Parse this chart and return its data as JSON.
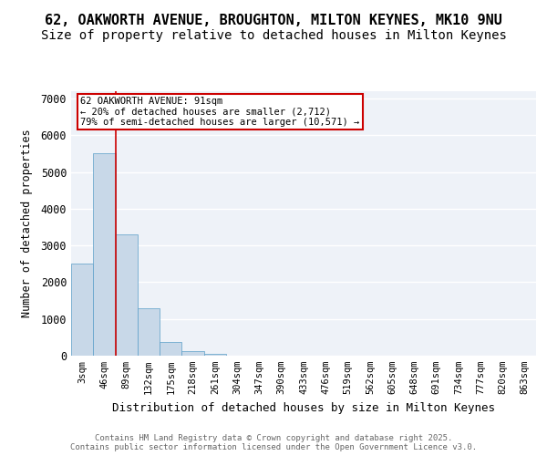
{
  "title_line1": "62, OAKWORTH AVENUE, BROUGHTON, MILTON KEYNES, MK10 9NU",
  "title_line2": "Size of property relative to detached houses in Milton Keynes",
  "xlabel": "Distribution of detached houses by size in Milton Keynes",
  "ylabel": "Number of detached properties",
  "bins": [
    "3sqm",
    "46sqm",
    "89sqm",
    "132sqm",
    "175sqm",
    "218sqm",
    "261sqm",
    "304sqm",
    "347sqm",
    "390sqm",
    "433sqm",
    "476sqm",
    "519sqm",
    "562sqm",
    "605sqm",
    "648sqm",
    "691sqm",
    "734sqm",
    "777sqm",
    "820sqm",
    "863sqm"
  ],
  "values": [
    2500,
    5500,
    3300,
    1300,
    380,
    130,
    50,
    10,
    5,
    2,
    1,
    0,
    0,
    0,
    0,
    0,
    0,
    0,
    0,
    0,
    0
  ],
  "bar_color": "#c8d8e8",
  "bar_edge_color": "#5a9ec8",
  "vline_color": "#cc0000",
  "vline_pos": 1.5,
  "annotation_text": "62 OAKWORTH AVENUE: 91sqm\n← 20% of detached houses are smaller (2,712)\n79% of semi-detached houses are larger (10,571) →",
  "annotation_box_color": "#ffffff",
  "annotation_box_edge": "#cc0000",
  "ylim": [
    0,
    7200
  ],
  "yticks": [
    0,
    1000,
    2000,
    3000,
    4000,
    5000,
    6000,
    7000
  ],
  "bg_color": "#eef2f8",
  "grid_color": "#ffffff",
  "footer_text": "Contains HM Land Registry data © Crown copyright and database right 2025.\nContains public sector information licensed under the Open Government Licence v3.0.",
  "title_fontsize": 11,
  "subtitle_fontsize": 10,
  "bar_width": 1.0
}
